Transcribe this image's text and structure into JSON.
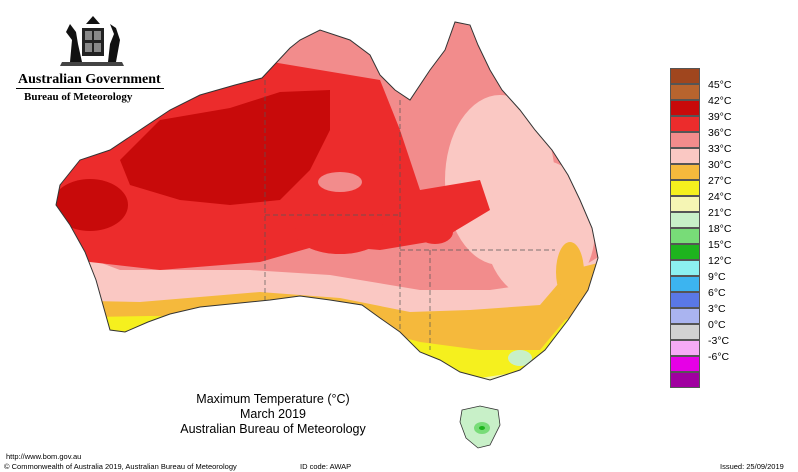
{
  "header": {
    "government": "Australian Government",
    "bureau": "Bureau of Meteorology"
  },
  "map_title": {
    "line1": "Maximum Temperature (°C)",
    "line2": "March 2019",
    "line3": "Australian Bureau of Meteorology"
  },
  "legend": [
    {
      "label": "45°C",
      "color": "#a0461e"
    },
    {
      "label": "42°C",
      "color": "#b8642e"
    },
    {
      "label": "39°C",
      "color": "#c80a0a"
    },
    {
      "label": "36°C",
      "color": "#ec2c2c"
    },
    {
      "label": "33°C",
      "color": "#f28c8c"
    },
    {
      "label": "30°C",
      "color": "#fac8c3"
    },
    {
      "label": "27°C",
      "color": "#f5b93c"
    },
    {
      "label": "24°C",
      "color": "#f5f01e"
    },
    {
      "label": "21°C",
      "color": "#f5f5b4"
    },
    {
      "label": "18°C",
      "color": "#c8f0c8"
    },
    {
      "label": "15°C",
      "color": "#78dc78"
    },
    {
      "label": "12°C",
      "color": "#1eb41e"
    },
    {
      "label": "9°C",
      "color": "#8cf0f0"
    },
    {
      "label": "6°C",
      "color": "#3cb4f0"
    },
    {
      "label": "3°C",
      "color": "#5a78e6"
    },
    {
      "label": "0°C",
      "color": "#aab4f0"
    },
    {
      "label": "-3°C",
      "color": "#d2d2d2"
    },
    {
      "label": "-6°C",
      "color": "#f5aaf5"
    },
    {
      "label": "",
      "color": "#e600e6"
    },
    {
      "label": "",
      "color": "#a000a0"
    }
  ],
  "footer": {
    "url": "http://www.bom.gov.au",
    "copyright": "© Commonwealth of Australia 2019, Australian Bureau of Meteorology",
    "id_code": "ID code: AWAP",
    "issued": "Issued: 25/09/2019"
  }
}
